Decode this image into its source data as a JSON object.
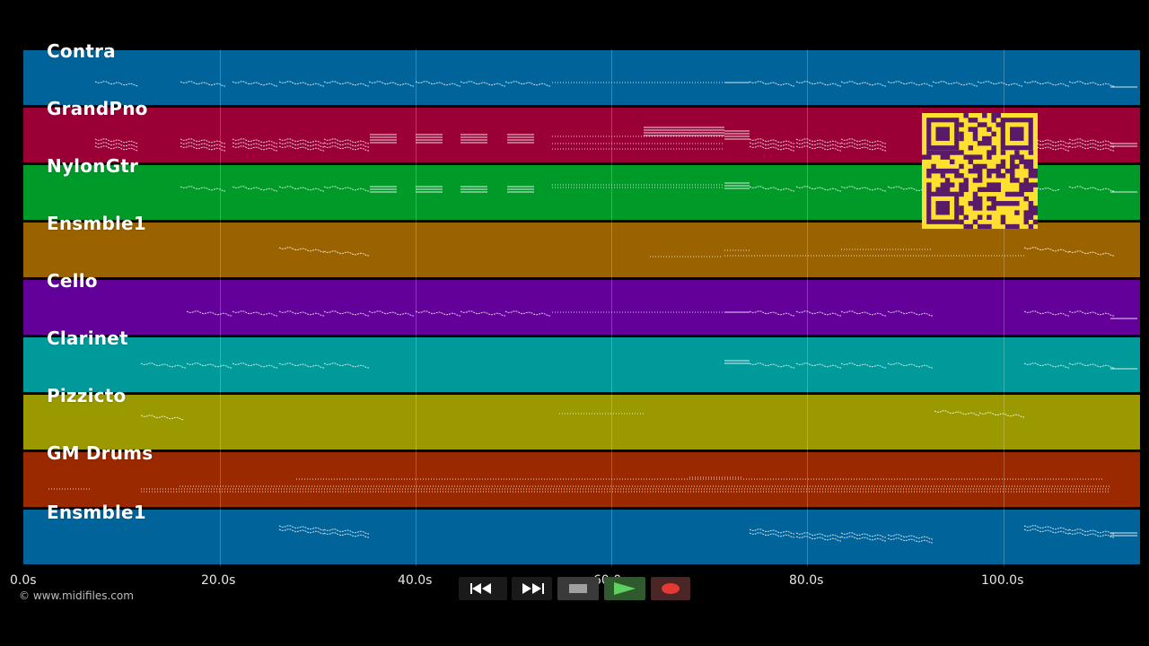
{
  "tracks": [
    {
      "name": "Contra",
      "color": "#00649a"
    },
    {
      "name": "GrandPno",
      "color": "#9a0035"
    },
    {
      "name": "NylonGtr",
      "color": "#009a29"
    },
    {
      "name": "Ensmble1",
      "color": "#9a6300"
    },
    {
      "name": "Cello",
      "color": "#63009a"
    },
    {
      "name": "Clarinet",
      "color": "#009a9a"
    },
    {
      "name": "Pizzicto",
      "color": "#9a9a00"
    },
    {
      "name": "GM Drums",
      "color": "#9a2900"
    },
    {
      "name": "Ensmble1",
      "color": "#00649a"
    }
  ],
  "timeline": {
    "ticks": [
      "0.0s",
      "20.0s",
      "40.0s",
      "60.0s",
      "80.0s",
      "100.0s"
    ]
  },
  "copyright": "© www.midifiles.com",
  "transport": {
    "rewind_icon": "rewind-icon",
    "fast_forward_icon": "fast-forward-icon",
    "stop_icon": "stop-icon",
    "play_icon": "play-icon",
    "record_icon": "record-icon",
    "play_color": "#4caf50",
    "record_color": "#e53935"
  },
  "qr": {
    "background": "#ffe030",
    "foreground": "#5a1a6a"
  }
}
